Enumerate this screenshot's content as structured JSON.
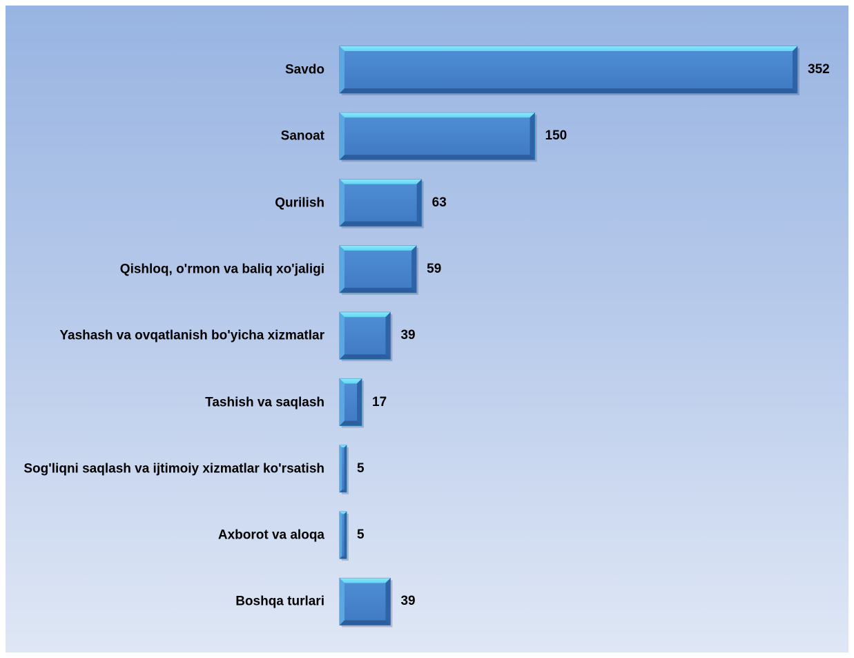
{
  "chart_data": {
    "type": "bar",
    "orientation": "horizontal",
    "categories": [
      "Savdo",
      "Sanoat",
      "Qurilish",
      "Qishloq, o'rmon va baliq xo'jaligi",
      "Yashash va ovqatlanish bo'yicha xizmatlar",
      "Tashish va saqlash",
      "Sog'liqni saqlash va ijtimoiy xizmatlar ko'rsatish",
      "Axborot va aloqa",
      "Boshqa turlari"
    ],
    "values": [
      352,
      150,
      63,
      59,
      39,
      17,
      5,
      5,
      39
    ],
    "title": "",
    "xlabel": "",
    "ylabel": "",
    "xlim": [
      0,
      352
    ],
    "grid": false,
    "legend": "none",
    "colors": {
      "bar_face": "#3f79c3",
      "bar_top_bevel": "#5fd6f2",
      "bar_edge": "#2e8fb9",
      "background_top": "#98b4e2",
      "background_bottom": "#dfe7f5"
    }
  }
}
